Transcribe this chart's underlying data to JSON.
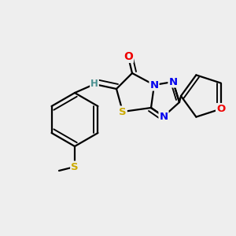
{
  "bg_color": "#EEEEEE",
  "atom_colors": {
    "C": "#000000",
    "N": "#0000EE",
    "O": "#EE0000",
    "S": "#CCAA00",
    "H": "#4A9090"
  },
  "bond_color": "#000000",
  "linewidth": 1.6,
  "lw_thin": 1.35
}
